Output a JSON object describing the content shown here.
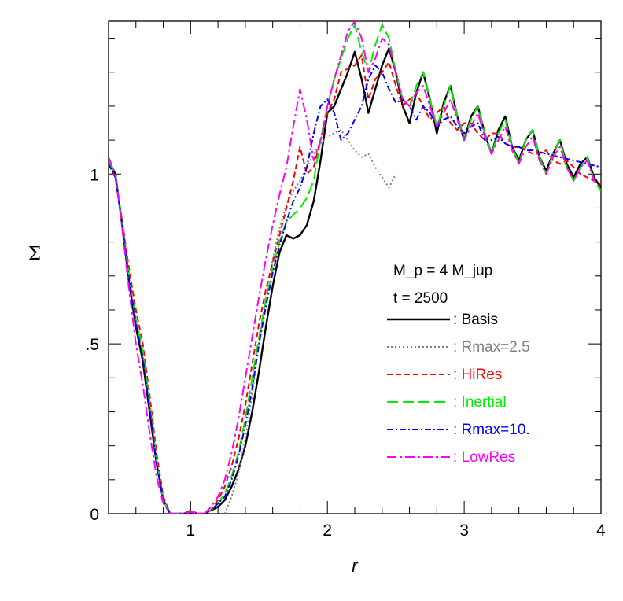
{
  "chart_data": {
    "type": "line",
    "title": "",
    "xlabel": "r",
    "ylabel": "Σ",
    "xlim": [
      0.4,
      4.0
    ],
    "ylim": [
      0.0,
      1.45
    ],
    "x_ticks": [
      {
        "value": 1,
        "label": "1"
      },
      {
        "value": 2,
        "label": "2"
      },
      {
        "value": 3,
        "label": "3"
      },
      {
        "value": 4,
        "label": "4"
      }
    ],
    "y_ticks": [
      {
        "value": 0,
        "label": "0"
      },
      {
        "value": 0.5,
        "label": ".5"
      },
      {
        "value": 1,
        "label": "1"
      }
    ],
    "annotations": [
      "M_p = 4 M_jup",
      "t = 2500"
    ],
    "legend_position": "right-middle",
    "series": [
      {
        "name": ": Basis",
        "color": "#000000",
        "dash": "solid",
        "x": [
          0.4,
          0.45,
          0.5,
          0.55,
          0.6,
          0.65,
          0.7,
          0.75,
          0.8,
          0.85,
          0.9,
          0.95,
          1.0,
          1.05,
          1.1,
          1.15,
          1.2,
          1.25,
          1.3,
          1.35,
          1.4,
          1.45,
          1.5,
          1.55,
          1.6,
          1.65,
          1.7,
          1.75,
          1.8,
          1.85,
          1.9,
          1.95,
          2.0,
          2.05,
          2.1,
          2.15,
          2.2,
          2.25,
          2.3,
          2.35,
          2.4,
          2.45,
          2.5,
          2.55,
          2.6,
          2.65,
          2.7,
          2.75,
          2.8,
          2.85,
          2.9,
          2.95,
          3.0,
          3.05,
          3.1,
          3.15,
          3.2,
          3.25,
          3.3,
          3.35,
          3.4,
          3.45,
          3.5,
          3.55,
          3.6,
          3.65,
          3.7,
          3.75,
          3.8,
          3.85,
          3.9,
          3.95,
          4.0
        ],
        "y": [
          1.04,
          1.0,
          0.85,
          0.68,
          0.55,
          0.45,
          0.3,
          0.15,
          0.04,
          0.0,
          0.0,
          0.0,
          0.005,
          0.0,
          0.0,
          0.01,
          0.02,
          0.04,
          0.08,
          0.13,
          0.2,
          0.3,
          0.42,
          0.55,
          0.67,
          0.77,
          0.82,
          0.81,
          0.82,
          0.85,
          0.92,
          1.04,
          1.18,
          1.2,
          1.25,
          1.3,
          1.36,
          1.28,
          1.18,
          1.25,
          1.32,
          1.37,
          1.3,
          1.2,
          1.15,
          1.24,
          1.3,
          1.22,
          1.12,
          1.21,
          1.26,
          1.17,
          1.1,
          1.17,
          1.2,
          1.12,
          1.06,
          1.13,
          1.17,
          1.08,
          1.04,
          1.1,
          1.13,
          1.05,
          1.01,
          1.06,
          1.1,
          1.03,
          0.99,
          1.03,
          1.05,
          0.99,
          0.96
        ]
      },
      {
        "name": ": Rmax=2.5",
        "color": "#808080",
        "dash": "dotted",
        "x": [
          1.25,
          1.3,
          1.35,
          1.4,
          1.45,
          1.5,
          1.55,
          1.6,
          1.65,
          1.7,
          1.75,
          1.8,
          1.85,
          1.9,
          1.95,
          2.0,
          2.05,
          2.1,
          2.15,
          2.2,
          2.25,
          2.3,
          2.35,
          2.4,
          2.45,
          2.5
        ],
        "y": [
          0.0,
          0.05,
          0.12,
          0.22,
          0.35,
          0.5,
          0.64,
          0.75,
          0.84,
          0.91,
          0.95,
          0.98,
          1.02,
          1.06,
          1.09,
          1.11,
          1.12,
          1.13,
          1.1,
          1.07,
          1.05,
          1.06,
          1.02,
          0.99,
          0.96,
          1.0
        ]
      },
      {
        "name": ": HiRes",
        "color": "#ff0000",
        "dash": "dash",
        "x": [
          0.4,
          0.45,
          0.5,
          0.55,
          0.6,
          0.65,
          0.7,
          0.75,
          0.8,
          0.85,
          0.9,
          0.95,
          1.0,
          1.05,
          1.1,
          1.15,
          1.2,
          1.25,
          1.3,
          1.35,
          1.4,
          1.45,
          1.5,
          1.55,
          1.6,
          1.65,
          1.7,
          1.75,
          1.8,
          1.85,
          1.9,
          1.95,
          2.0,
          2.05,
          2.1,
          2.15,
          2.2,
          2.25,
          2.3,
          2.35,
          2.4,
          2.45,
          2.5,
          2.55,
          2.6,
          2.65,
          2.7,
          2.75,
          2.8,
          2.85,
          2.9,
          2.95,
          3.0,
          3.05,
          3.1,
          3.15,
          3.2,
          3.25,
          3.3,
          3.35,
          3.4,
          3.45,
          3.5,
          3.55,
          3.6,
          3.65,
          3.7,
          3.75,
          3.8,
          3.85,
          3.9,
          3.95,
          4.0
        ],
        "y": [
          1.03,
          0.99,
          0.86,
          0.72,
          0.6,
          0.5,
          0.35,
          0.18,
          0.05,
          0.0,
          0.0,
          0.0,
          0.01,
          0.0,
          0.0,
          0.01,
          0.04,
          0.08,
          0.14,
          0.22,
          0.32,
          0.44,
          0.56,
          0.66,
          0.74,
          0.82,
          0.9,
          0.98,
          1.08,
          1.0,
          1.02,
          1.1,
          1.18,
          1.22,
          1.3,
          1.31,
          1.32,
          1.35,
          1.22,
          1.28,
          1.3,
          1.33,
          1.26,
          1.2,
          1.22,
          1.24,
          1.2,
          1.16,
          1.18,
          1.2,
          1.15,
          1.13,
          1.15,
          1.15,
          1.12,
          1.1,
          1.12,
          1.12,
          1.09,
          1.08,
          1.08,
          1.07,
          1.06,
          1.06,
          1.07,
          1.04,
          1.03,
          1.04,
          1.02,
          1.0,
          0.99,
          0.98,
          0.97
        ]
      },
      {
        "name": ": Inertial",
        "color": "#00ee00",
        "dash": "longdash",
        "x": [
          0.4,
          0.45,
          0.5,
          0.55,
          0.6,
          0.65,
          0.7,
          0.75,
          0.8,
          0.85,
          0.9,
          0.95,
          1.0,
          1.05,
          1.1,
          1.15,
          1.2,
          1.25,
          1.3,
          1.35,
          1.4,
          1.45,
          1.5,
          1.55,
          1.6,
          1.65,
          1.7,
          1.75,
          1.8,
          1.85,
          1.9,
          1.95,
          2.0,
          2.05,
          2.1,
          2.15,
          2.2,
          2.25,
          2.3,
          2.35,
          2.4,
          2.45,
          2.5,
          2.55,
          2.6,
          2.65,
          2.7,
          2.75,
          2.8,
          2.85,
          2.9,
          2.95,
          3.0,
          3.05,
          3.1,
          3.15,
          3.2,
          3.25,
          3.3,
          3.35,
          3.4,
          3.45,
          3.5,
          3.55,
          3.6,
          3.65,
          3.7,
          3.75,
          3.8,
          3.85,
          3.9,
          3.95,
          4.0
        ],
        "y": [
          1.04,
          1.0,
          0.86,
          0.7,
          0.57,
          0.48,
          0.33,
          0.16,
          0.04,
          0.0,
          0.0,
          0.0,
          0.005,
          0.0,
          0.0,
          0.01,
          0.03,
          0.06,
          0.11,
          0.18,
          0.28,
          0.4,
          0.52,
          0.63,
          0.72,
          0.8,
          0.86,
          0.88,
          0.9,
          0.93,
          0.98,
          1.1,
          1.2,
          1.28,
          1.34,
          1.4,
          1.44,
          1.36,
          1.3,
          1.38,
          1.44,
          1.4,
          1.3,
          1.22,
          1.2,
          1.26,
          1.3,
          1.22,
          1.14,
          1.2,
          1.26,
          1.17,
          1.1,
          1.16,
          1.2,
          1.12,
          1.06,
          1.12,
          1.16,
          1.08,
          1.03,
          1.1,
          1.13,
          1.05,
          1.0,
          1.06,
          1.1,
          1.02,
          0.98,
          1.02,
          1.05,
          0.98,
          0.95
        ]
      },
      {
        "name": ": Rmax=10.",
        "color": "#0000ff",
        "dash": "dashdot",
        "x": [
          0.4,
          0.45,
          0.5,
          0.55,
          0.6,
          0.65,
          0.7,
          0.75,
          0.8,
          0.85,
          0.9,
          0.95,
          1.0,
          1.05,
          1.1,
          1.15,
          1.2,
          1.25,
          1.3,
          1.35,
          1.4,
          1.45,
          1.5,
          1.55,
          1.6,
          1.65,
          1.7,
          1.75,
          1.8,
          1.85,
          1.9,
          1.95,
          2.0,
          2.05,
          2.1,
          2.15,
          2.2,
          2.25,
          2.3,
          2.35,
          2.4,
          2.45,
          2.5,
          2.55,
          2.6,
          2.65,
          2.7,
          2.75,
          2.8,
          2.85,
          2.9,
          2.95,
          3.0,
          3.05,
          3.1,
          3.15,
          3.2,
          3.25,
          3.3,
          3.35,
          3.4,
          3.45,
          3.5,
          3.6,
          3.7,
          3.8,
          3.9,
          4.0
        ],
        "y": [
          1.03,
          0.99,
          0.85,
          0.69,
          0.56,
          0.46,
          0.31,
          0.15,
          0.04,
          0.0,
          0.0,
          0.0,
          0.005,
          0.0,
          0.0,
          0.01,
          0.03,
          0.05,
          0.1,
          0.17,
          0.26,
          0.37,
          0.5,
          0.61,
          0.71,
          0.79,
          0.86,
          0.92,
          0.96,
          1.02,
          1.12,
          1.2,
          1.22,
          1.18,
          1.1,
          1.12,
          1.16,
          1.2,
          1.28,
          1.32,
          1.3,
          1.25,
          1.21,
          1.22,
          1.2,
          1.16,
          1.2,
          1.18,
          1.14,
          1.16,
          1.17,
          1.14,
          1.12,
          1.14,
          1.15,
          1.1,
          1.1,
          1.11,
          1.09,
          1.08,
          1.08,
          1.07,
          1.07,
          1.06,
          1.05,
          1.04,
          1.03,
          1.02
        ]
      },
      {
        "name": ": LowRes",
        "color": "#ff00ff",
        "dash": "dashdot2",
        "x": [
          0.4,
          0.45,
          0.5,
          0.55,
          0.6,
          0.65,
          0.7,
          0.75,
          0.8,
          0.85,
          0.9,
          0.95,
          1.0,
          1.05,
          1.1,
          1.15,
          1.2,
          1.25,
          1.3,
          1.35,
          1.4,
          1.45,
          1.5,
          1.55,
          1.6,
          1.65,
          1.7,
          1.75,
          1.8,
          1.85,
          1.9,
          1.95,
          2.0,
          2.05,
          2.1,
          2.15,
          2.2,
          2.25,
          2.3,
          2.35,
          2.4,
          2.45,
          2.5,
          2.55,
          2.6,
          2.65,
          2.7,
          2.75,
          2.8,
          2.85,
          2.9,
          2.95,
          3.0,
          3.05,
          3.1,
          3.15,
          3.2,
          3.25,
          3.3,
          3.35,
          3.4,
          3.45,
          3.5,
          3.55,
          3.6,
          3.65,
          3.7,
          3.75,
          3.8,
          3.85,
          3.9,
          3.95,
          4.0
        ],
        "y": [
          1.05,
          1.0,
          0.84,
          0.66,
          0.5,
          0.38,
          0.24,
          0.11,
          0.03,
          0.0,
          0.0,
          0.0,
          0.005,
          0.0,
          0.0,
          0.02,
          0.05,
          0.1,
          0.18,
          0.28,
          0.4,
          0.52,
          0.64,
          0.75,
          0.85,
          0.94,
          1.02,
          1.14,
          1.25,
          1.16,
          1.04,
          1.1,
          1.2,
          1.28,
          1.35,
          1.42,
          1.45,
          1.4,
          1.3,
          1.34,
          1.4,
          1.38,
          1.3,
          1.22,
          1.2,
          1.24,
          1.26,
          1.2,
          1.14,
          1.18,
          1.22,
          1.16,
          1.1,
          1.14,
          1.18,
          1.11,
          1.06,
          1.1,
          1.14,
          1.07,
          1.03,
          1.08,
          1.11,
          1.04,
          1.0,
          1.05,
          1.08,
          1.02,
          0.98,
          1.02,
          1.04,
          0.98,
          0.96
        ]
      }
    ]
  }
}
